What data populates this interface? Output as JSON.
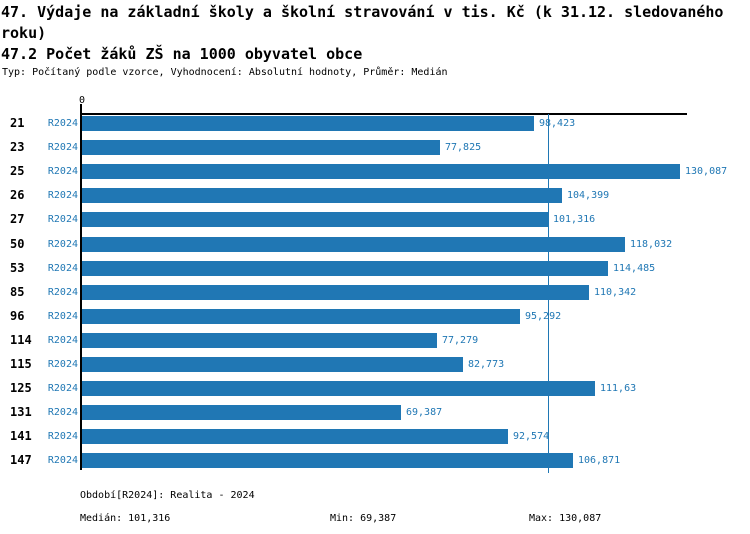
{
  "header": {
    "title": "47. Výdaje na základní školy a školní stravování v tis. Kč (k 31.12. sledovaného roku)",
    "indicator": "47.2 Počet žáků ZŠ na 1000 obyvatel obce",
    "meta": "Typ: Počítaný podle vzorce, Vyhodnocení: Absolutní hodnoty, Průměr: Medián"
  },
  "chart_data": {
    "type": "bar",
    "orientation": "horizontal",
    "title": "47.2 Počet žáků ZŠ na 1000 obyvatel obce",
    "categories": [
      "21",
      "23",
      "25",
      "26",
      "27",
      "50",
      "53",
      "85",
      "96",
      "114",
      "115",
      "125",
      "131",
      "141",
      "147"
    ],
    "series": [
      {
        "name": "R2024",
        "values": [
          98.423,
          77.825,
          130.087,
          104.399,
          101.316,
          118.032,
          114.485,
          110.342,
          95.292,
          77.279,
          82.773,
          111.63,
          69.387,
          92.574,
          106.871
        ],
        "value_labels": [
          "98,423",
          "77,825",
          "130,087",
          "104,399",
          "101,316",
          "118,032",
          "114,485",
          "110,342",
          "95,292",
          "77,279",
          "82,773",
          "111,63",
          "69,387",
          "92,574",
          "106,871"
        ]
      }
    ],
    "xlim": [
      0,
      131.6
    ],
    "axis_origin_label": "0",
    "median_value": 101.316,
    "min_value": 69.387,
    "max_value": 130.087,
    "grid": false,
    "legend_position": "bottom",
    "bar_color": "#2077b4",
    "text_blue": "#1f77b4",
    "median_line_color": "#1f77b4"
  },
  "legend": {
    "period_line": "Období[R2024]: Realita - 2024",
    "median_label": "Medián: 101,316",
    "min_label": "Min: 69,387",
    "max_label": "Max: 130,087"
  }
}
